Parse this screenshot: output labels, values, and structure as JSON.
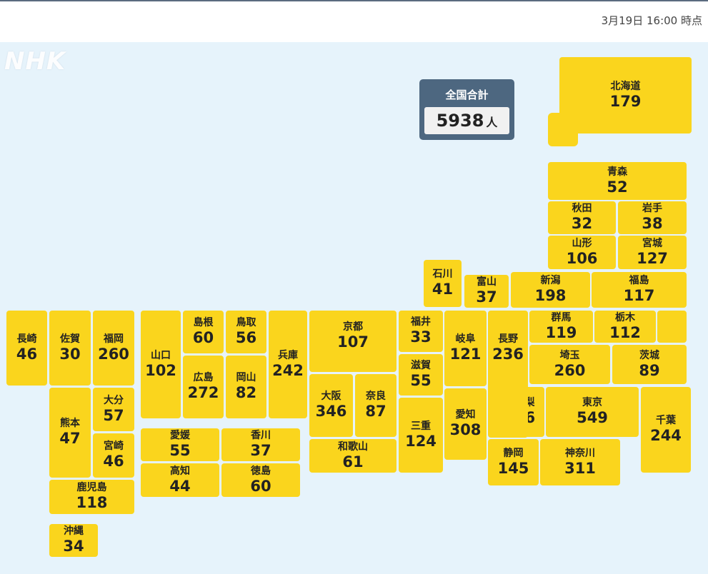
{
  "timestamp": "3月19日 16:00 時点",
  "logo": "NHK",
  "total": {
    "label": "全国合計",
    "value": "5938",
    "unit": "人"
  },
  "prefectures": {
    "hokkaido": {
      "name": "北海道",
      "count": "179"
    },
    "aomori": {
      "name": "青森",
      "count": "52"
    },
    "akita": {
      "name": "秋田",
      "count": "32"
    },
    "iwate": {
      "name": "岩手",
      "count": "38"
    },
    "yamagata": {
      "name": "山形",
      "count": "106"
    },
    "miyagi": {
      "name": "宮城",
      "count": "127"
    },
    "niigata": {
      "name": "新潟",
      "count": "198"
    },
    "fukushima": {
      "name": "福島",
      "count": "117"
    },
    "toyama": {
      "name": "富山",
      "count": "37"
    },
    "ishikawa": {
      "name": "石川",
      "count": "41"
    },
    "gunma": {
      "name": "群馬",
      "count": "119"
    },
    "tochigi": {
      "name": "栃木",
      "count": "112"
    },
    "saitama": {
      "name": "埼玉",
      "count": "260"
    },
    "ibaraki": {
      "name": "茨城",
      "count": "89"
    },
    "nagano": {
      "name": "長野",
      "count": "236"
    },
    "gifu": {
      "name": "岐阜",
      "count": "121"
    },
    "fukui": {
      "name": "福井",
      "count": "33"
    },
    "shiga": {
      "name": "滋賀",
      "count": "55"
    },
    "mie": {
      "name": "三重",
      "count": "124"
    },
    "aichi": {
      "name": "愛知",
      "count": "308"
    },
    "yamanashi": {
      "name": "山梨",
      "count": "56"
    },
    "tokyo": {
      "name": "東京",
      "count": "549"
    },
    "chiba": {
      "name": "千葉",
      "count": "244"
    },
    "shizuoka": {
      "name": "静岡",
      "count": "145"
    },
    "kanagawa": {
      "name": "神奈川",
      "count": "311"
    },
    "kyoto": {
      "name": "京都",
      "count": "107"
    },
    "osaka": {
      "name": "大阪",
      "count": "346"
    },
    "nara": {
      "name": "奈良",
      "count": "87"
    },
    "wakayama": {
      "name": "和歌山",
      "count": "61"
    },
    "hyogo": {
      "name": "兵庫",
      "count": "242"
    },
    "tottori": {
      "name": "鳥取",
      "count": "56"
    },
    "shimane": {
      "name": "島根",
      "count": "60"
    },
    "okayama": {
      "name": "岡山",
      "count": "82"
    },
    "hiroshima": {
      "name": "広島",
      "count": "272"
    },
    "yamaguchi": {
      "name": "山口",
      "count": "102"
    },
    "ehime": {
      "name": "愛媛",
      "count": "55"
    },
    "kagawa": {
      "name": "香川",
      "count": "37"
    },
    "kochi": {
      "name": "高知",
      "count": "44"
    },
    "tokushima": {
      "name": "徳島",
      "count": "60"
    },
    "fukuoka": {
      "name": "福岡",
      "count": "260"
    },
    "saga": {
      "name": "佐賀",
      "count": "30"
    },
    "nagasaki": {
      "name": "長崎",
      "count": "46"
    },
    "kumamoto": {
      "name": "熊本",
      "count": "47"
    },
    "oita": {
      "name": "大分",
      "count": "57"
    },
    "miyazaki": {
      "name": "宮崎",
      "count": "46"
    },
    "kagoshima": {
      "name": "鹿児島",
      "count": "118"
    },
    "okinawa": {
      "name": "沖縄",
      "count": "34"
    }
  },
  "colors": {
    "tile": "#fad51d",
    "background": "#e6f3fb",
    "total_box": "#4d6780"
  }
}
